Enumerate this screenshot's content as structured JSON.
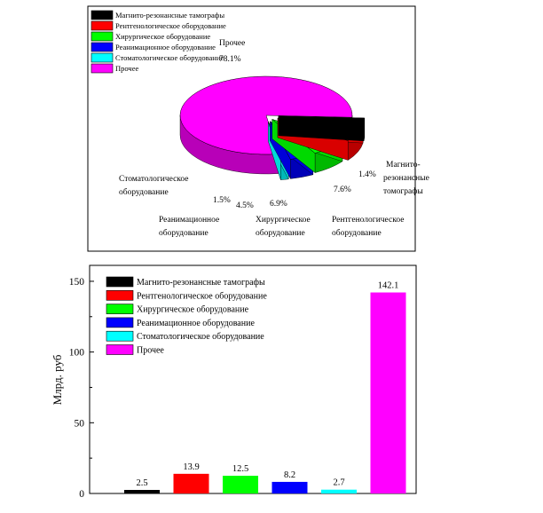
{
  "chart_data": [
    {
      "type": "pie",
      "title": "",
      "legend_position": "top-left",
      "categories": [
        "Магнито-резонансные тамографы",
        "Рентгенологическое оборудование",
        "Хирургическое оборудование",
        "Реанимационное оборудование",
        "Стоматологическое оборудование",
        "Прочее"
      ],
      "values": [
        1.4,
        7.6,
        6.9,
        4.5,
        1.5,
        78.1
      ],
      "value_labels": [
        "1.4%",
        "7.6%",
        "6.9%",
        "4.5%",
        "1.5%",
        "78.1%"
      ],
      "slice_labels": [
        [
          "Магнито-",
          "резонансные",
          "томографы"
        ],
        [
          "Рентгенологическое",
          "оборудование"
        ],
        [
          "Хирургическое",
          "оборудование"
        ],
        [
          "Реанимационное",
          "оборудование"
        ],
        [
          "Стоматологическое",
          "оборудование"
        ],
        [
          "Прочее"
        ]
      ],
      "colors": [
        "#000000",
        "#ff0000",
        "#00ff00",
        "#0000ff",
        "#00ffff",
        "#ff00ff"
      ]
    },
    {
      "type": "bar",
      "categories": [
        "Магнито-резонансные тамографы",
        "Рентгенологическое оборудование",
        "Хирургическое оборудование",
        "Реанимационное оборудование",
        "Стоматологическое оборудование",
        "Прочее"
      ],
      "values": [
        2.5,
        13.9,
        12.5,
        8.2,
        2.7,
        142.1
      ],
      "value_labels": [
        "2.5",
        "13.9",
        "12.5",
        "8.2",
        "2.7",
        "142.1"
      ],
      "colors": [
        "#000000",
        "#ff0000",
        "#00ff00",
        "#0000ff",
        "#00ffff",
        "#ff00ff"
      ],
      "ylabel": "Млрд. руб",
      "xlabel": "",
      "ylim": [
        0,
        160
      ],
      "yticks": [
        "0",
        "50",
        "100",
        "150"
      ],
      "legend_position": "top-left"
    }
  ]
}
